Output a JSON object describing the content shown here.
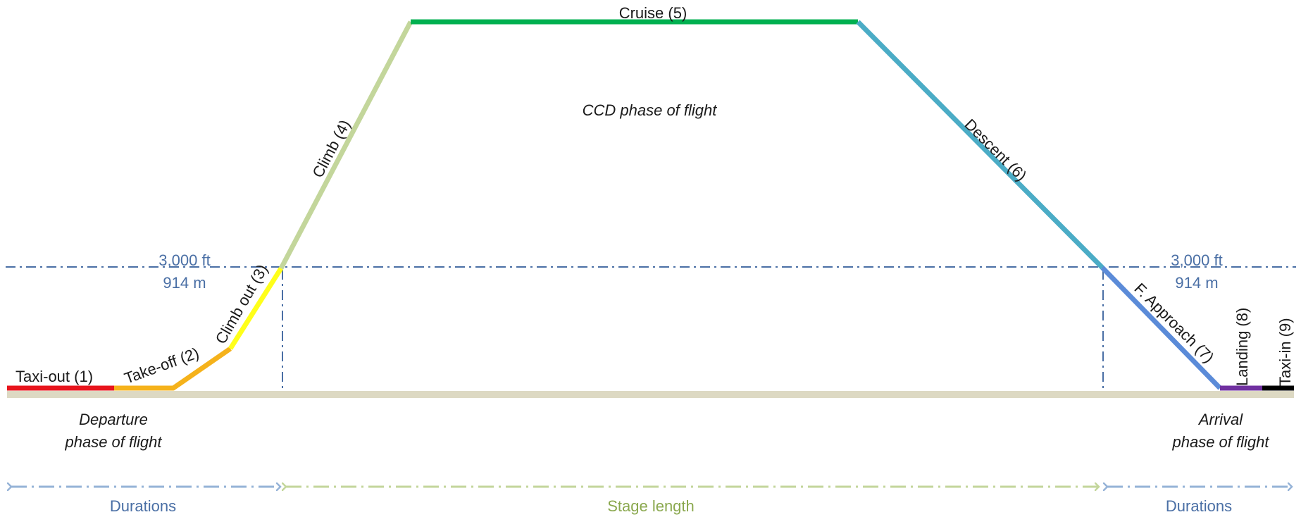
{
  "phases": {
    "taxi_out": "Taxi-out (1)",
    "take_off": "Take-off (2)",
    "climb_out": "Climb out (3)",
    "climb": "Climb (4)",
    "cruise": "Cruise (5)",
    "descent": "Descent (6)",
    "f_approach": "F. Approach (7)",
    "landing": "Landing (8)",
    "taxi_in": "Taxi-in (9)"
  },
  "altitude_left": {
    "ft": "3,000 ft",
    "m": "914 m"
  },
  "altitude_right": {
    "ft": "3,000 ft",
    "m": "914 m"
  },
  "regions": {
    "ccd": "CCD phase of flight",
    "departure_line1": "Departure",
    "departure_line2": "phase of flight",
    "arrival_line1": "Arrival",
    "arrival_line2": "phase of flight"
  },
  "spans": {
    "left": "Durations",
    "middle": "Stage length",
    "right": "Durations"
  },
  "colors": {
    "taxi_out": "#e8141c",
    "take_off": "#f5b21b",
    "climb_out": "#ffff1a",
    "climb": "#c3d69b",
    "cruise": "#00b050",
    "descent": "#4bacc6",
    "f_approach": "#5b8bd8",
    "landing": "#7030a0",
    "taxi_in": "#000000",
    "ground": "#ddd9c3",
    "dash_blue": "#4a6fa5",
    "arrow_blue": "#95b3d7",
    "arrow_green": "#c3d69b"
  }
}
